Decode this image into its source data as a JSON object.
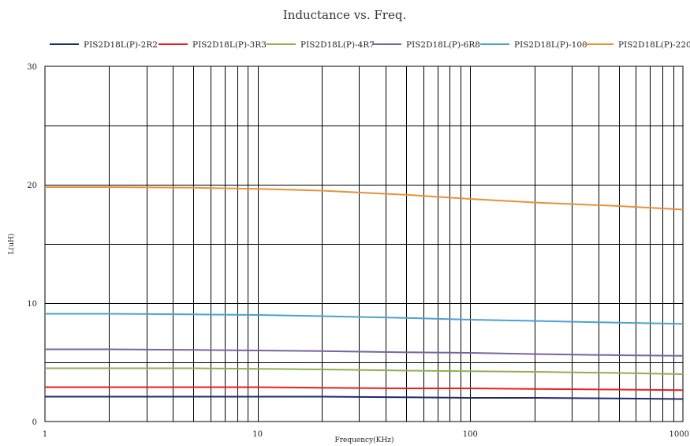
{
  "chart_data": {
    "type": "line",
    "title": "Inductance vs. Freq.",
    "xlabel": "Frequency(KHz)",
    "ylabel": "L(uH)",
    "x_scale": "log",
    "xlim": [
      1,
      1000
    ],
    "ylim": [
      0,
      30
    ],
    "x_ticks": [
      "1",
      "10",
      "100",
      "1000"
    ],
    "y_ticks": [
      "0",
      "10",
      "20",
      "30"
    ],
    "grid": true,
    "legend_position": "top",
    "x": [
      1,
      2,
      5,
      10,
      20,
      50,
      100,
      200,
      500,
      1000
    ],
    "series": [
      {
        "name": "PIS2D18L(P)-2R2",
        "color": "#1f2a6b",
        "values": [
          2.1,
          2.1,
          2.1,
          2.1,
          2.1,
          2.05,
          2.0,
          2.0,
          1.95,
          1.9
        ]
      },
      {
        "name": "PIS2D18L(P)-3R3",
        "color": "#e8201e",
        "values": [
          2.9,
          2.9,
          2.9,
          2.9,
          2.85,
          2.8,
          2.8,
          2.75,
          2.7,
          2.65
        ]
      },
      {
        "name": "PIS2D18L(P)-4R7",
        "color": "#8fb050",
        "values": [
          4.5,
          4.5,
          4.5,
          4.45,
          4.4,
          4.3,
          4.25,
          4.2,
          4.1,
          4.0
        ]
      },
      {
        "name": "PIS2D18L(P)-6R8",
        "color": "#7a639e",
        "values": [
          6.1,
          6.1,
          6.05,
          6.0,
          5.95,
          5.85,
          5.8,
          5.7,
          5.6,
          5.55
        ]
      },
      {
        "name": "PIS2D18L(P)-100",
        "color": "#4aa3cf",
        "values": [
          9.1,
          9.1,
          9.05,
          9.0,
          8.9,
          8.75,
          8.6,
          8.5,
          8.35,
          8.25
        ]
      },
      {
        "name": "PIS2D18L(P)-220",
        "color": "#e8913a",
        "values": [
          19.8,
          19.8,
          19.75,
          19.65,
          19.5,
          19.15,
          18.8,
          18.5,
          18.2,
          17.9
        ]
      }
    ]
  }
}
